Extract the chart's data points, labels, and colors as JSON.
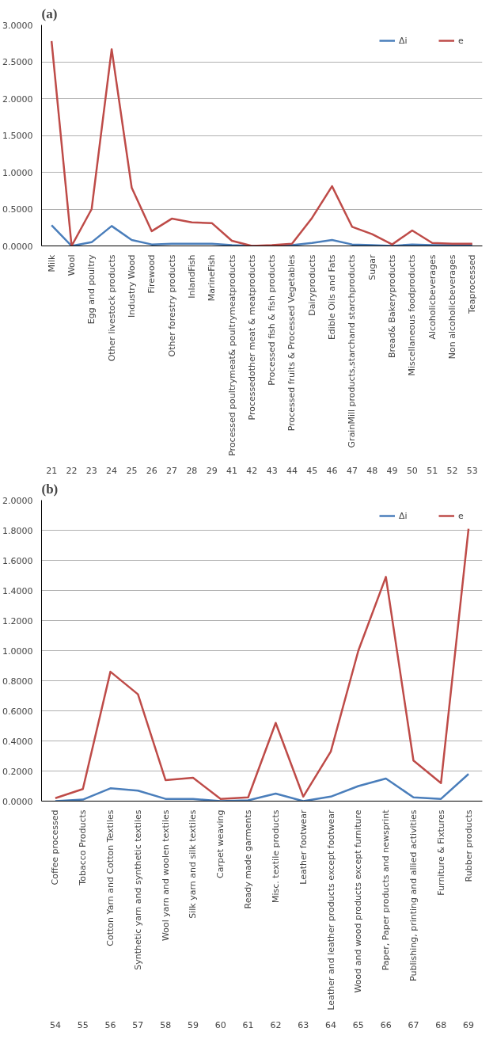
{
  "chart_data": [
    {
      "type": "line",
      "title": "(a)",
      "legend": "top right",
      "grid": "y",
      "categories": [
        "Milk",
        "Wool",
        "Egg and poultry",
        "Other livestock products",
        "Industry Wood",
        "Firewood",
        "Other forestry products",
        "InlandFish",
        "MarineFish",
        "Processed poultrymeat& poultrymeatproducts",
        "Processedother meat & meatproducts",
        "Processed fish & fish products",
        "Processed fruits & Processed Vegetables",
        "Dairyproducts",
        "Edible Oils and Fats",
        "GrainMill products,starchand starchproducts",
        "Sugar",
        "Bread& Bakeryproducts",
        "Miscellaneous foodproducts",
        "Alcoholicbeverages",
        "Non alcoholicbeverages",
        "Teaprocessed"
      ],
      "series": [
        {
          "name": "Δi",
          "color": "#4a7ebb",
          "values": [
            0.28,
            0.0,
            0.05,
            0.27,
            0.08,
            0.02,
            0.03,
            0.03,
            0.03,
            0.01,
            0.0,
            0.0,
            0.01,
            0.04,
            0.08,
            0.02,
            0.01,
            0.0,
            0.02,
            0.01,
            0.01,
            0.01
          ]
        },
        {
          "name": "e",
          "color": "#be4b48",
          "values": [
            2.78,
            0.0,
            0.5,
            2.67,
            0.79,
            0.2,
            0.37,
            0.32,
            0.31,
            0.07,
            0.0,
            0.01,
            0.03,
            0.38,
            0.81,
            0.26,
            0.16,
            0.02,
            0.21,
            0.04,
            0.03,
            0.03
          ]
        }
      ],
      "ylim": [
        0,
        3
      ],
      "yticks": [
        {
          "value": 0,
          "label": "0.0000"
        },
        {
          "value": 0.5,
          "label": "0.5000"
        },
        {
          "value": 1,
          "label": "1.0000"
        },
        {
          "value": 1.5,
          "label": "1.5000"
        },
        {
          "value": 2,
          "label": "2.0000"
        },
        {
          "value": 2.5,
          "label": "2.5000"
        },
        {
          "value": 3,
          "label": "3.0000"
        }
      ],
      "annotations": [
        "21",
        "22",
        "23",
        "24",
        "25",
        "26",
        "27",
        "28",
        "29",
        "41",
        "42",
        "43",
        "44",
        "45",
        "46",
        "47",
        "48",
        "49",
        "50",
        "51",
        "52",
        "53"
      ]
    },
    {
      "type": "line",
      "title": "(b)",
      "legend": "top right",
      "grid": "y",
      "categories": [
        "Coffee processed",
        "Tobacco Products",
        "Cotton Yarn and Cotton Textiles",
        "Synthetic yarn and synthetic textiles",
        "Wool yarn and woolen textiles",
        "Silk yarn and silk textiles",
        "Carpet weaving",
        "Ready made garments",
        "Misc. textile products",
        "Leather footwear",
        "Leather and leather products except footwear",
        "Wood and wood products except furniture",
        "Paper, Paper products and newsprint",
        "Publishing, printing and allied activities",
        "Furniture & Fixtures",
        "Rubber products"
      ],
      "series": [
        {
          "name": "Δi",
          "color": "#4a7ebb",
          "values": [
            0.0,
            0.01,
            0.085,
            0.07,
            0.015,
            0.015,
            0.0,
            0.005,
            0.05,
            0.0,
            0.03,
            0.1,
            0.15,
            0.025,
            0.015,
            0.18
          ]
        },
        {
          "name": "e",
          "color": "#be4b48",
          "values": [
            0.02,
            0.08,
            0.86,
            0.71,
            0.14,
            0.155,
            0.015,
            0.025,
            0.52,
            0.03,
            0.33,
            1.0,
            1.49,
            0.27,
            0.12,
            1.81
          ]
        }
      ],
      "ylim": [
        0,
        2
      ],
      "yticks": [
        {
          "value": 0,
          "label": "0.0000"
        },
        {
          "value": 0.2,
          "label": "0.2000"
        },
        {
          "value": 0.4,
          "label": "0.4000"
        },
        {
          "value": 0.6,
          "label": "0.6000"
        },
        {
          "value": 0.8,
          "label": "0.8000"
        },
        {
          "value": 1,
          "label": "1.0000"
        },
        {
          "value": 1.2,
          "label": "1.2000"
        },
        {
          "value": 1.4,
          "label": "1.4000"
        },
        {
          "value": 1.6,
          "label": "1.6000"
        },
        {
          "value": 1.8,
          "label": "1.8000"
        },
        {
          "value": 2,
          "label": "2.0000"
        }
      ],
      "annotations": [
        "54",
        "55",
        "56",
        "57",
        "58",
        "59",
        "60",
        "61",
        "62",
        "63",
        "64",
        "65",
        "66",
        "67",
        "68",
        "69"
      ]
    }
  ]
}
